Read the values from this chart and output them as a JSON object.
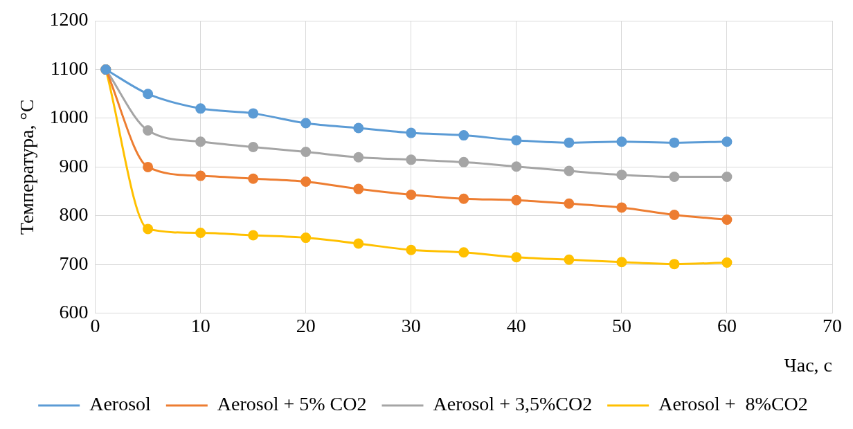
{
  "chart_data": {
    "type": "line",
    "xlabel": "Час, с",
    "ylabel": "Температура, °C",
    "x": [
      1,
      5,
      10,
      15,
      20,
      25,
      30,
      35,
      40,
      45,
      50,
      55,
      60
    ],
    "series": [
      {
        "name": "Aerosol",
        "color": "#5b9bd5",
        "values": [
          1100,
          1050,
          1020,
          1010,
          990,
          980,
          970,
          965,
          955,
          950,
          952,
          950,
          952
        ]
      },
      {
        "name": "Aerosol + 5% CO2",
        "color": "#ed7d31",
        "values": [
          1100,
          900,
          882,
          876,
          870,
          855,
          843,
          835,
          832,
          825,
          817,
          802,
          792
        ]
      },
      {
        "name": "Aerosol + 3,5%CO2",
        "color": "#a5a5a5",
        "values": [
          1100,
          975,
          952,
          941,
          931,
          920,
          915,
          910,
          901,
          892,
          884,
          880,
          880
        ]
      },
      {
        "name": "Aerosol +  8%CO2",
        "color": "#ffc000",
        "values": [
          1100,
          773,
          765,
          760,
          755,
          743,
          730,
          725,
          715,
          710,
          705,
          701,
          704
        ]
      }
    ],
    "xlim": [
      0,
      70
    ],
    "xticks": [
      0,
      10,
      20,
      30,
      40,
      50,
      60,
      70
    ],
    "ylim": [
      600,
      1200
    ],
    "yticks": [
      600,
      700,
      800,
      900,
      1000,
      1100,
      1200
    ],
    "grid": true,
    "legend": "bottom",
    "marker": "circle",
    "line_style": "solid"
  }
}
